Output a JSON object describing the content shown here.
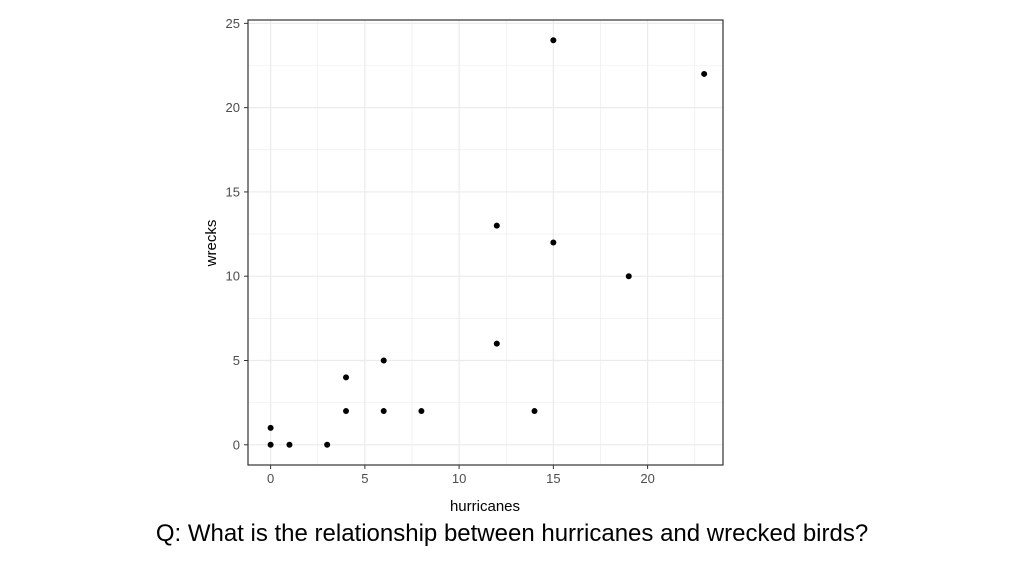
{
  "chart_data": {
    "type": "scatter",
    "title": "",
    "xlabel": "hurricanes",
    "ylabel": "wrecks",
    "xlim": [
      -1.2,
      24.0
    ],
    "ylim": [
      -1.2,
      25.2
    ],
    "xticks": [
      0,
      5,
      10,
      15,
      20
    ],
    "yticks": [
      0,
      5,
      10,
      15,
      20,
      25
    ],
    "x_minor": [
      2.5,
      7.5,
      12.5,
      17.5,
      22.5
    ],
    "y_minor": [
      2.5,
      7.5,
      12.5,
      17.5,
      22.5
    ],
    "grid": true,
    "legend": "none",
    "point_color": "#000000",
    "grid_color": "#ebebeb",
    "points": [
      {
        "x": 0,
        "y": 1
      },
      {
        "x": 0,
        "y": 0
      },
      {
        "x": 1,
        "y": 0
      },
      {
        "x": 3,
        "y": 0
      },
      {
        "x": 4,
        "y": 4
      },
      {
        "x": 4,
        "y": 2
      },
      {
        "x": 6,
        "y": 5
      },
      {
        "x": 6,
        "y": 2
      },
      {
        "x": 8,
        "y": 2
      },
      {
        "x": 12,
        "y": 13
      },
      {
        "x": 12,
        "y": 6
      },
      {
        "x": 14,
        "y": 2
      },
      {
        "x": 15,
        "y": 24
      },
      {
        "x": 15,
        "y": 12
      },
      {
        "x": 19,
        "y": 10
      },
      {
        "x": 23,
        "y": 22
      }
    ]
  },
  "caption": "Q: What is the relationship between hurricanes and wrecked birds?"
}
